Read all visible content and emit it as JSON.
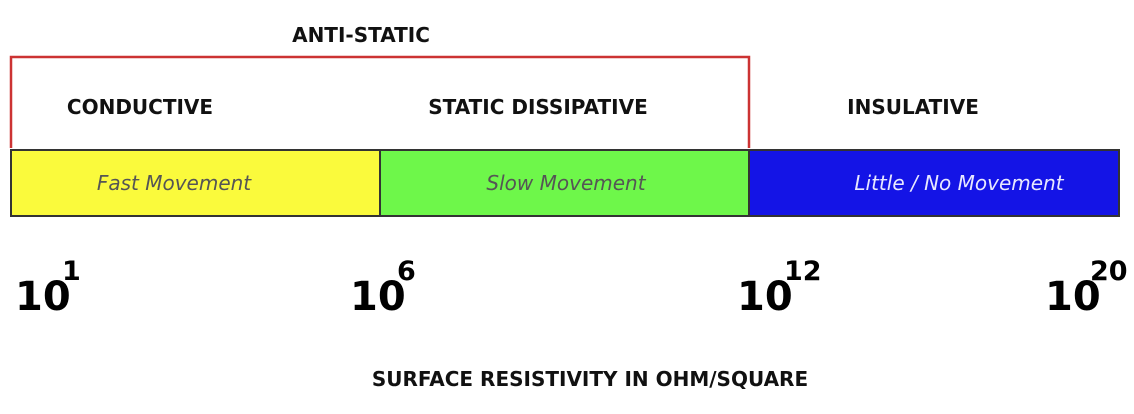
{
  "group": {
    "title": "ANTI-STATIC"
  },
  "categories": [
    {
      "label": "CONDUCTIVE",
      "movement": "Fast Movement"
    },
    {
      "label": "STATIC DISSIPATIVE",
      "movement": "Slow Movement"
    },
    {
      "label": "INSULATIVE",
      "movement": "Little / No Movement"
    }
  ],
  "scale": [
    {
      "base": "10",
      "exponent": "1"
    },
    {
      "base": "10",
      "exponent": "6"
    },
    {
      "base": "10",
      "exponent": "12"
    },
    {
      "base": "10",
      "exponent": "20"
    }
  ],
  "axis_label": "SURFACE RESISTIVITY IN OHM/SQUARE"
}
